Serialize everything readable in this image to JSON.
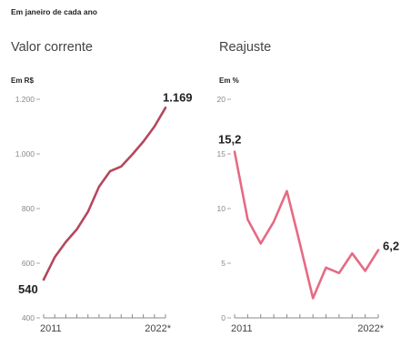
{
  "subtitle": "Em janeiro de cada ano",
  "chart_data": [
    {
      "type": "line",
      "title": "Valor corrente",
      "unit": "Em R$",
      "color": "#b5475e",
      "ylim": [
        400,
        1200
      ],
      "yticks": [
        400,
        600,
        800,
        1000,
        1200
      ],
      "ytick_labels": [
        "400",
        "600",
        "800",
        "1.000",
        "1.200"
      ],
      "xlim": [
        2011,
        2022
      ],
      "xtick_labels": [
        "2011",
        "2022*"
      ],
      "x": [
        2011,
        2012,
        2013,
        2014,
        2015,
        2016,
        2017,
        2018,
        2019,
        2020,
        2021,
        2022
      ],
      "values": [
        540,
        622,
        678,
        724,
        788,
        880,
        937,
        954,
        998,
        1045,
        1100,
        1169
      ],
      "data_labels": {
        "first": "540",
        "last": "1.169"
      }
    },
    {
      "type": "line",
      "title": "Reajuste",
      "unit": "Em %",
      "color": "#e66a84",
      "ylim": [
        0,
        20
      ],
      "yticks": [
        0,
        5,
        10,
        15,
        20
      ],
      "ytick_labels": [
        "0",
        "5",
        "10",
        "15",
        "20"
      ],
      "xlim": [
        2011,
        2022
      ],
      "xtick_labels": [
        "2011",
        "2022*"
      ],
      "x": [
        2011,
        2012,
        2013,
        2014,
        2015,
        2016,
        2017,
        2018,
        2019,
        2020,
        2021,
        2022
      ],
      "values": [
        15.2,
        9.0,
        6.8,
        8.8,
        11.6,
        6.8,
        1.8,
        4.6,
        4.1,
        5.9,
        4.3,
        6.2
      ],
      "data_labels": {
        "first": "15,2",
        "last": "6,2"
      }
    }
  ]
}
